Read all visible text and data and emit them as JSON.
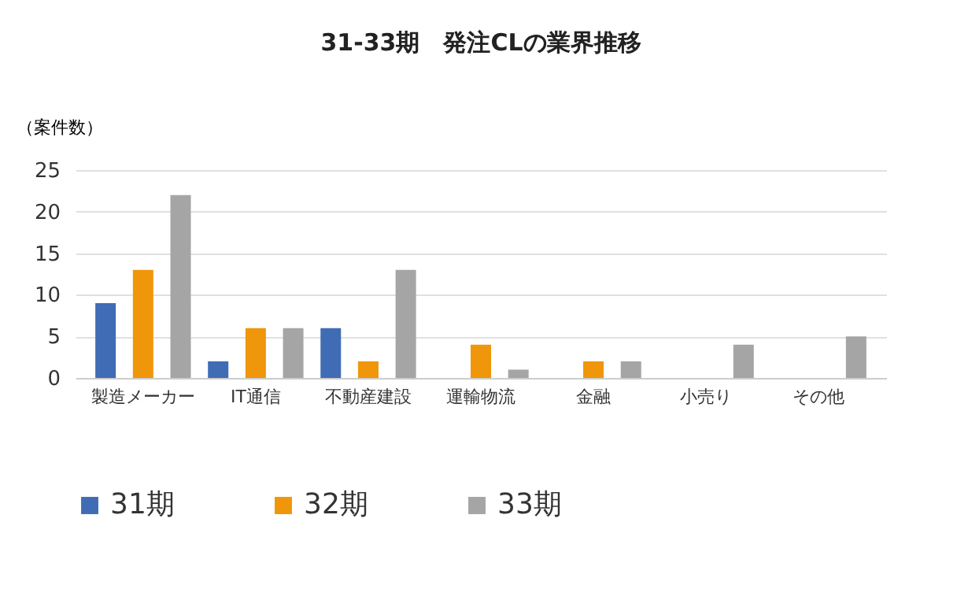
{
  "chart_data": {
    "type": "bar",
    "title": "31-33期　発注CLの業界推移",
    "ylabel": "（案件数）",
    "categories": [
      "製造メーカー",
      "IT通信",
      "不動産建設",
      "運輸物流",
      "金融",
      "小売り",
      "その他"
    ],
    "series": [
      {
        "name": "31期",
        "color": "#3f6cb5",
        "values": [
          9,
          2,
          6,
          0,
          0,
          0,
          0
        ]
      },
      {
        "name": "32期",
        "color": "#f0960a",
        "values": [
          13,
          6,
          2,
          4,
          2,
          0,
          0
        ]
      },
      {
        "name": "33期",
        "color": "#a5a5a5",
        "values": [
          22,
          6,
          13,
          1,
          2,
          4,
          5
        ]
      }
    ],
    "ylim": [
      0,
      25
    ],
    "yticks": [
      0,
      5,
      10,
      15,
      20,
      25
    ],
    "grid": "y",
    "legend": "bottom"
  }
}
